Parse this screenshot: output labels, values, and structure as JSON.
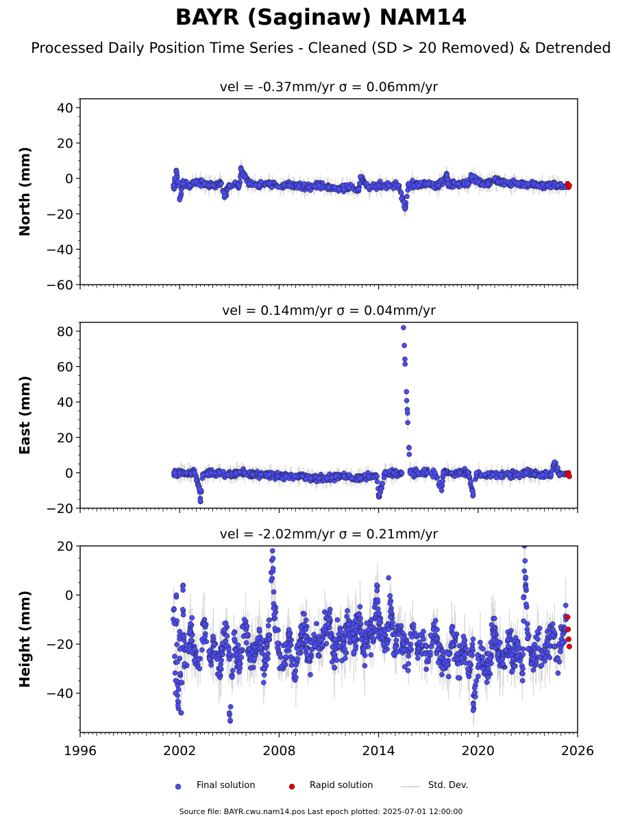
{
  "title": "BAYR (Saginaw) NAM14",
  "subtitle": "Processed Daily Position Time Series - Cleaned (SD > 20 Removed) & Detrended",
  "legend": {
    "final": "Final solution",
    "rapid": "Rapid solution",
    "stddev": "Std. Dev."
  },
  "footer": "Source file: BAYR.cwu.nam14.pos  Last epoch plotted: 2025-07-01 12:00:00",
  "colors": {
    "final": "#4b4bf0",
    "rapid": "#e8000b",
    "stddev": "#c8c8c8",
    "edge": "#1a1a1a"
  },
  "chart_data": [
    {
      "type": "scatter",
      "title": "vel = -0.37mm/yr   σ = 0.06mm/yr",
      "ylabel": "North (mm)",
      "xlim": [
        1996,
        2026
      ],
      "ylim": [
        -60,
        45
      ],
      "yticks": [
        -60,
        -40,
        -20,
        0,
        20,
        40
      ],
      "xticks": [
        1996,
        2002,
        2008,
        2014,
        2020,
        2026
      ],
      "show_xtick_labels": false,
      "series": [
        {
          "name": "Final solution",
          "x": [
            2001.7,
            2001.9,
            2002.2,
            2002.6,
            2003.0,
            2003.5,
            2004.0,
            2004.5,
            2005.0,
            2005.6,
            2006.2,
            2006.8,
            2007.4,
            2008.0,
            2008.6,
            2009.2,
            2009.8,
            2010.4,
            2011.0,
            2011.6,
            2012.2,
            2012.8,
            2013.4,
            2014.0,
            2014.6,
            2015.2,
            2015.8,
            2016.4,
            2017.0,
            2017.6,
            2018.2,
            2018.8,
            2019.4,
            2020.0,
            2020.6,
            2021.2,
            2021.8,
            2022.4,
            2023.0,
            2023.6,
            2024.2,
            2024.8,
            2025.3,
            2001.8,
            2002.0,
            2004.7,
            2005.7,
            2012.9,
            2015.6,
            2018.1,
            2019.6,
            2021.0
          ],
          "y": [
            0,
            -2,
            -3,
            -4,
            -2,
            -3,
            -4,
            -3,
            -4,
            -4,
            -3,
            -4,
            -3,
            -5,
            -4,
            -4,
            -5,
            -4,
            -5,
            -6,
            -5,
            -6,
            -5,
            -4,
            -4,
            -4,
            -3,
            -4,
            -3,
            -4,
            -3,
            -3,
            -3,
            -2,
            -3,
            -2,
            -2,
            -3,
            -3,
            -4,
            -4,
            -4,
            -5,
            4,
            -12,
            -10,
            5,
            1,
            -17,
            2,
            1,
            0
          ]
        },
        {
          "name": "Rapid solution",
          "x": [
            2025.4,
            2025.45,
            2025.5
          ],
          "y": [
            -3,
            -5,
            -4
          ]
        }
      ]
    },
    {
      "type": "scatter",
      "title": "vel = 0.14mm/yr   σ = 0.04mm/yr",
      "ylabel": "East (mm)",
      "xlim": [
        1996,
        2026
      ],
      "ylim": [
        -20,
        85
      ],
      "yticks": [
        -20,
        0,
        20,
        40,
        60,
        80
      ],
      "xticks": [
        1996,
        2002,
        2008,
        2014,
        2020,
        2026
      ],
      "show_xtick_labels": false,
      "series": [
        {
          "name": "Final solution",
          "x": [
            2001.7,
            2002.0,
            2002.4,
            2002.9,
            2003.4,
            2003.9,
            2004.4,
            2004.9,
            2005.4,
            2005.9,
            2006.4,
            2006.9,
            2007.4,
            2007.9,
            2008.4,
            2008.9,
            2009.4,
            2009.9,
            2010.4,
            2010.9,
            2011.4,
            2011.9,
            2012.4,
            2012.9,
            2013.4,
            2013.9,
            2014.4,
            2014.9,
            2015.4,
            2015.9,
            2016.4,
            2016.9,
            2017.4,
            2017.9,
            2018.4,
            2018.9,
            2019.4,
            2019.9,
            2020.4,
            2020.9,
            2021.4,
            2021.9,
            2022.4,
            2022.9,
            2023.4,
            2023.9,
            2024.4,
            2024.9,
            2025.3,
            2015.5,
            2003.2,
            2003.25,
            2014.0,
            2014.05,
            2024.6,
            2019.7,
            2017.8
          ],
          "y": [
            0,
            0,
            0,
            0,
            -1,
            0,
            0,
            -1,
            0,
            0,
            -1,
            -1,
            -1,
            -2,
            -2,
            -2,
            -2,
            -3,
            -3,
            -3,
            -2,
            -2,
            -3,
            -3,
            -2,
            -2,
            0,
            0,
            0,
            0,
            0,
            0,
            0,
            0,
            0,
            0,
            0,
            0,
            -1,
            -1,
            -1,
            -1,
            -1,
            0,
            -1,
            -1,
            -1,
            -1,
            -1,
            82,
            -9,
            -16,
            -13,
            -12,
            6,
            -12,
            -10
          ]
        },
        {
          "name": "Rapid solution",
          "x": [
            2025.4,
            2025.45,
            2025.5
          ],
          "y": [
            -1,
            0,
            -2
          ]
        }
      ]
    },
    {
      "type": "scatter",
      "title": "vel = -2.02mm/yr   σ = 0.21mm/yr",
      "ylabel": "Height (mm)",
      "xlim": [
        1996,
        2026
      ],
      "ylim": [
        -56,
        20
      ],
      "yticks": [
        -40,
        -20,
        0,
        20
      ],
      "xticks": [
        1996,
        2002,
        2008,
        2014,
        2020,
        2026
      ],
      "xtick_labels": [
        "1996",
        "2002",
        "2008",
        "2014",
        "2020",
        "2026"
      ],
      "show_xtick_labels": true,
      "series": [
        {
          "name": "Final solution",
          "x": [
            2001.7,
            2002.0,
            2002.3,
            2002.6,
            2002.9,
            2003.2,
            2003.5,
            2003.8,
            2004.1,
            2004.4,
            2004.7,
            2005.0,
            2005.3,
            2005.6,
            2005.9,
            2006.2,
            2006.5,
            2006.8,
            2007.1,
            2007.4,
            2007.7,
            2008.0,
            2008.3,
            2008.6,
            2008.9,
            2009.2,
            2009.5,
            2009.8,
            2010.1,
            2010.4,
            2010.7,
            2011.0,
            2011.3,
            2011.6,
            2011.9,
            2012.2,
            2012.5,
            2012.8,
            2013.1,
            2013.4,
            2013.7,
            2014.0,
            2014.3,
            2014.6,
            2014.9,
            2015.2,
            2015.5,
            2015.8,
            2016.1,
            2016.4,
            2016.7,
            2017.0,
            2017.3,
            2017.6,
            2017.9,
            2018.2,
            2018.5,
            2018.8,
            2019.1,
            2019.4,
            2019.7,
            2020.0,
            2020.3,
            2020.6,
            2020.9,
            2021.2,
            2021.5,
            2021.8,
            2022.1,
            2022.4,
            2022.7,
            2023.0,
            2023.3,
            2023.6,
            2023.9,
            2024.2,
            2024.5,
            2024.8,
            2025.1,
            2025.3,
            2001.75,
            2001.9,
            2002.1,
            2005.0,
            2005.05,
            2007.6,
            2022.8,
            2001.8,
            2002.2,
            2019.7,
            2020.3,
            2014.6,
            2013.9
          ],
          "y": [
            -25,
            -18,
            -28,
            -15,
            -22,
            -30,
            -12,
            -26,
            -20,
            -32,
            -14,
            -24,
            -18,
            -28,
            -10,
            -22,
            -26,
            -14,
            -30,
            -18,
            -8,
            -24,
            -28,
            -16,
            -32,
            -20,
            -12,
            -26,
            -18,
            -22,
            -14,
            -10,
            -24,
            -16,
            -20,
            -12,
            -18,
            -8,
            -22,
            -14,
            -18,
            -10,
            -20,
            -14,
            -24,
            -16,
            -20,
            -28,
            -12,
            -22,
            -18,
            -26,
            -14,
            -20,
            -30,
            -24,
            -16,
            -28,
            -20,
            -32,
            -18,
            -26,
            -22,
            -30,
            -16,
            -24,
            -28,
            -18,
            -26,
            -20,
            -30,
            -22,
            -26,
            -18,
            -24,
            -20,
            -14,
            -26,
            -16,
            -10,
            -40,
            -45,
            -48,
            -48,
            -51,
            18,
            20,
            0,
            2,
            -47,
            -30,
            7,
            4
          ]
        },
        {
          "name": "Rapid solution",
          "x": [
            2025.4,
            2025.43,
            2025.46,
            2025.5
          ],
          "y": [
            -9,
            -14,
            -18,
            -21
          ]
        }
      ]
    }
  ]
}
